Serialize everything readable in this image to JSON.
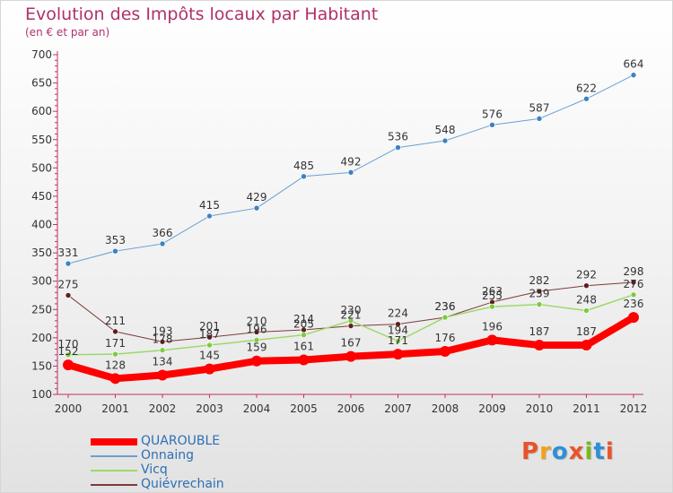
{
  "title": "Evolution des Impôts locaux par Habitant",
  "subtitle": "(en € et par an)",
  "logo_text": "Proxiti",
  "logo_colors": [
    "#e8542a",
    "#f2a21a",
    "#2f8fd6",
    "#e8542a",
    "#7bb81e",
    "#2f8fd6",
    "#e8542a"
  ],
  "chart_data": {
    "type": "line",
    "title": "Evolution des Impôts locaux par Habitant",
    "subtitle": "(en € et par an)",
    "x": [
      "2000",
      "2001",
      "2002",
      "2003",
      "2004",
      "2005",
      "2006",
      "2007",
      "2008",
      "2009",
      "2010",
      "2011",
      "2012"
    ],
    "ylim": [
      100,
      700
    ],
    "yticks": [
      100,
      150,
      200,
      250,
      300,
      350,
      400,
      450,
      500,
      550,
      600,
      650,
      700
    ],
    "grid": false,
    "legend_position": "bottom-left",
    "series": [
      {
        "name": "Onnaing",
        "color": "#6a9fd0",
        "marker": "#3b82c4",
        "width": 1,
        "values": [
          331,
          353,
          366,
          415,
          429,
          485,
          492,
          536,
          548,
          576,
          587,
          622,
          664
        ],
        "labels": [
          "331",
          "353",
          "366",
          "415",
          "429",
          "485",
          "492",
          "536",
          "548",
          "576",
          "587",
          "622",
          "664"
        ]
      },
      {
        "name": "Quiévrechain",
        "color": "#7b3b3b",
        "marker": "#5e1f1f",
        "width": 1,
        "values": [
          275,
          211,
          193,
          201,
          210,
          214,
          221,
          224,
          236,
          263,
          282,
          292,
          298
        ],
        "labels": [
          "275",
          "211",
          "193",
          "201",
          "210",
          "214",
          "221",
          "224",
          "236",
          "263",
          "282",
          "292",
          "298"
        ]
      },
      {
        "name": "Vicq",
        "color": "#9ed86a",
        "marker": "#7ccb3f",
        "width": 1.5,
        "values": [
          170,
          171,
          178,
          187,
          196,
          205,
          230,
          194,
          236,
          255,
          259,
          248,
          276
        ],
        "labels": [
          "170",
          "171",
          "178",
          "187",
          "196",
          "205",
          "230",
          "194",
          "236",
          "255",
          "259",
          "248",
          "276"
        ]
      },
      {
        "name": "QUAROUBLE",
        "color": "#ff0000",
        "marker": "#ff0000",
        "width": 8,
        "values": [
          152,
          128,
          134,
          145,
          159,
          161,
          167,
          171,
          176,
          196,
          187,
          187,
          236
        ],
        "labels": [
          "152",
          "128",
          "134",
          "145",
          "159",
          "161",
          "167",
          "171",
          "176",
          "196",
          "187",
          "187",
          "236"
        ]
      }
    ],
    "legend": [
      "QUAROUBLE",
      "Onnaing",
      "Vicq",
      "Quiévrechain"
    ]
  }
}
